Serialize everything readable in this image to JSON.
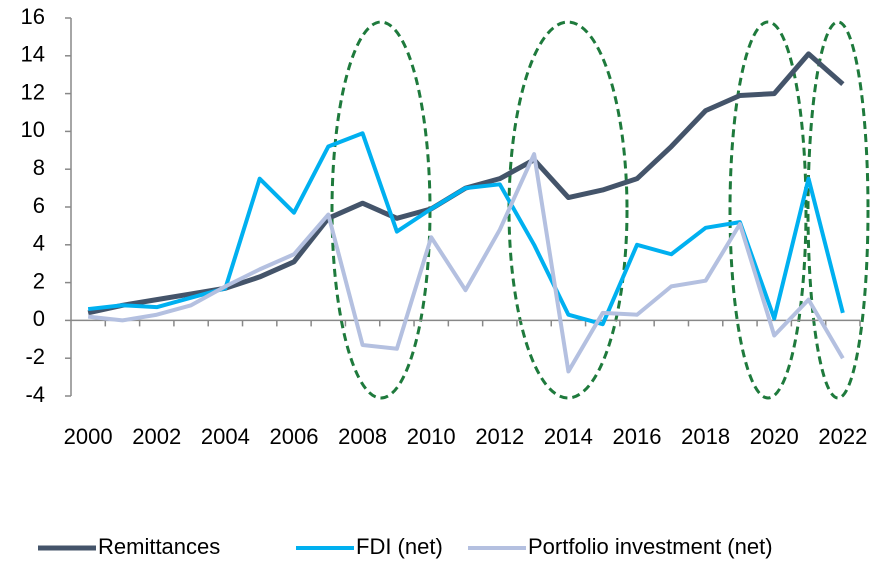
{
  "chart_data": {
    "type": "line",
    "categories": [
      "2000",
      null,
      "2002",
      null,
      "2004",
      null,
      "2006",
      null,
      "2008",
      null,
      "2010",
      null,
      "2012",
      null,
      "2014",
      null,
      "2016",
      null,
      "2018",
      null,
      "2020",
      null,
      "2022"
    ],
    "series": [
      {
        "name": "Remittances",
        "color": "#44546a",
        "values": [
          0.4,
          0.8,
          1.1,
          1.4,
          1.7,
          2.3,
          3.1,
          5.4,
          6.2,
          5.4,
          5.9,
          7.0,
          7.5,
          8.5,
          6.5,
          6.9,
          7.5,
          9.2,
          11.1,
          11.9,
          12.0,
          14.1,
          12.5
        ]
      },
      {
        "name": "FDI (net)",
        "color": "#00b0f0",
        "values": [
          0.6,
          0.8,
          0.7,
          1.2,
          1.7,
          7.5,
          5.7,
          9.2,
          9.9,
          4.7,
          5.9,
          7.0,
          7.2,
          4.0,
          0.3,
          -0.2,
          4.0,
          3.5,
          4.9,
          5.2,
          0.1,
          7.5,
          0.4
        ]
      },
      {
        "name": "Portfolio investment (net)",
        "color": "#b4c0e0",
        "values": [
          0.2,
          0.0,
          0.3,
          0.8,
          1.8,
          2.7,
          3.5,
          5.6,
          -1.3,
          -1.5,
          4.4,
          1.6,
          4.8,
          8.8,
          -2.7,
          0.4,
          0.3,
          1.8,
          2.1,
          5.1,
          -0.8,
          1.1,
          -2.0
        ]
      }
    ],
    "ylim": [
      -4,
      16
    ],
    "yticks": [
      -4,
      -2,
      0,
      2,
      4,
      6,
      8,
      10,
      12,
      14,
      16
    ],
    "grid": false
  }
}
